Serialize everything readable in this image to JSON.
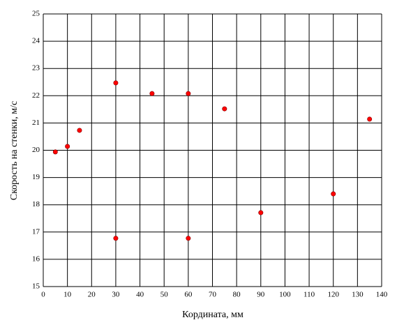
{
  "chart_data": {
    "type": "scatter",
    "x_label": "Кордината, мм",
    "y_label": "Скорость на стенки, м/с",
    "x": [
      5,
      10,
      15,
      30,
      45,
      60,
      75,
      30,
      60,
      90,
      120,
      135
    ],
    "values": [
      19.94,
      20.14,
      20.73,
      22.47,
      22.08,
      22.08,
      21.52,
      16.77,
      16.77,
      17.71,
      18.4,
      21.14
    ],
    "color": "#ff0000",
    "xlim": [
      0,
      140
    ],
    "xticks": [
      0,
      10,
      20,
      30,
      40,
      50,
      60,
      70,
      80,
      90,
      100,
      110,
      120,
      130,
      140
    ],
    "ylim": [
      15,
      25
    ],
    "yticks": [
      15,
      16,
      17,
      18,
      19,
      20,
      21,
      22,
      23,
      24,
      25
    ],
    "grid": true
  }
}
